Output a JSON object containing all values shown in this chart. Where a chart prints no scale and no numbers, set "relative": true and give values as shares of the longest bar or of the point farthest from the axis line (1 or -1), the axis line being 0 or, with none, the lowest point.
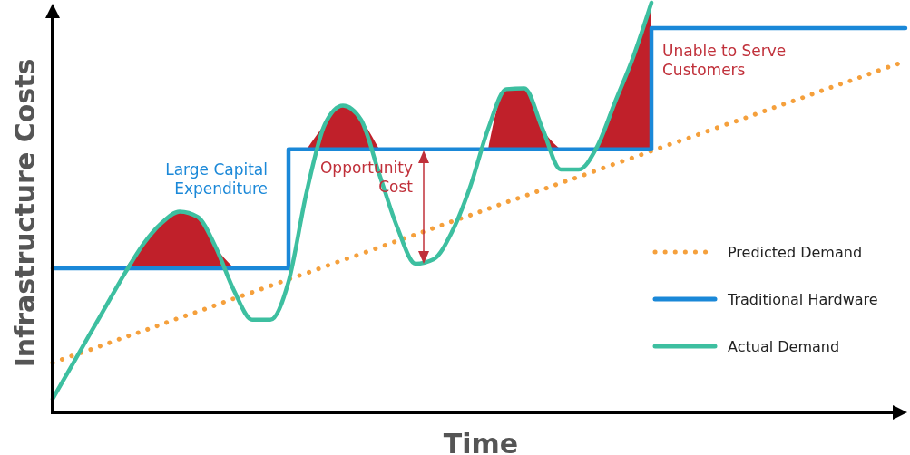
{
  "chart_data": {
    "type": "line",
    "relative": true,
    "xlabel": "Time",
    "ylabel": "Infrastructure Costs",
    "categories": [
      null,
      null,
      null,
      null,
      null,
      null,
      null,
      null,
      null,
      null,
      null,
      null,
      null,
      null,
      null,
      null,
      null,
      null,
      null,
      null,
      null,
      null,
      null,
      null,
      null,
      null,
      null,
      null,
      null,
      null,
      null,
      null,
      null,
      null,
      null,
      null,
      null,
      null,
      null,
      null,
      null,
      null,
      null,
      null,
      null,
      null,
      null,
      null
    ],
    "series": [
      {
        "type": "area",
        "color": "#c0202a",
        "values": [
          null,
          null,
          null,
          null,
          0.352,
          0.411,
          0.462,
          0.49,
          0.477,
          0.402,
          0.352,
          null,
          null,
          null,
          0.642,
          0.703,
          0.749,
          0.714,
          0.642,
          null,
          null,
          null,
          null,
          null,
          0.642,
          0.789,
          0.791,
          0.692,
          0.642,
          null,
          0.642,
          0.758,
          0.868,
          1.0,
          null,
          null,
          null,
          null,
          null,
          null,
          null,
          null,
          null,
          null,
          null,
          null,
          null,
          null
        ]
      },
      {
        "name": "Predicted Demand",
        "type": "line",
        "line_style": "dotted",
        "color": "#f5a03c",
        "values": [
          0.121,
          0.137,
          0.152,
          0.168,
          0.184,
          0.199,
          0.215,
          0.231,
          0.246,
          0.262,
          0.278,
          0.293,
          0.309,
          0.325,
          0.34,
          0.356,
          0.372,
          0.387,
          0.403,
          0.419,
          0.434,
          0.45,
          0.466,
          0.481,
          0.497,
          0.513,
          0.528,
          0.544,
          0.56,
          0.575,
          0.591,
          0.607,
          0.622,
          0.638,
          0.654,
          0.669,
          0.685,
          0.701,
          0.716,
          0.732,
          0.748,
          0.763,
          0.779,
          0.795,
          0.81,
          0.826,
          0.842,
          0.857
        ]
      },
      {
        "name": "Traditional Hardware",
        "type": "step",
        "line_style": "solid",
        "color": "#1a88d8",
        "values": [
          0.352,
          0.352,
          0.352,
          0.352,
          0.352,
          0.352,
          0.352,
          0.352,
          0.352,
          0.352,
          0.352,
          0.352,
          0.352,
          0.642,
          0.642,
          0.642,
          0.642,
          0.642,
          0.642,
          0.642,
          0.642,
          0.642,
          0.642,
          0.642,
          0.642,
          0.642,
          0.642,
          0.642,
          0.642,
          0.642,
          0.642,
          0.642,
          0.642,
          0.938,
          0.938,
          0.938,
          0.938,
          0.938,
          0.938,
          0.938,
          0.938,
          0.938,
          0.938,
          0.938,
          0.938,
          0.938,
          0.938,
          0.938
        ]
      },
      {
        "name": "Actual Demand",
        "type": "line",
        "line_style": "solid",
        "color": "#3dbfa0",
        "values": [
          0.033,
          0.11,
          0.187,
          0.264,
          0.341,
          0.411,
          0.462,
          0.49,
          0.477,
          0.402,
          0.297,
          0.226,
          0.226,
          0.319,
          0.538,
          0.703,
          0.749,
          0.714,
          0.582,
          0.451,
          0.363,
          0.374,
          0.44,
          0.549,
          0.692,
          0.789,
          0.791,
          0.692,
          0.593,
          0.593,
          0.648,
          0.758,
          0.868,
          1.0,
          null,
          null,
          null,
          null,
          null,
          null,
          null,
          null,
          null,
          null,
          null,
          null,
          null,
          null
        ]
      }
    ],
    "annotations": [
      "Large Capital\nExpenditure",
      "Opportunity\nCost",
      "Unable to Serve\nCustomers"
    ],
    "legend": "bottom right",
    "grid": false,
    "marker": "none"
  }
}
